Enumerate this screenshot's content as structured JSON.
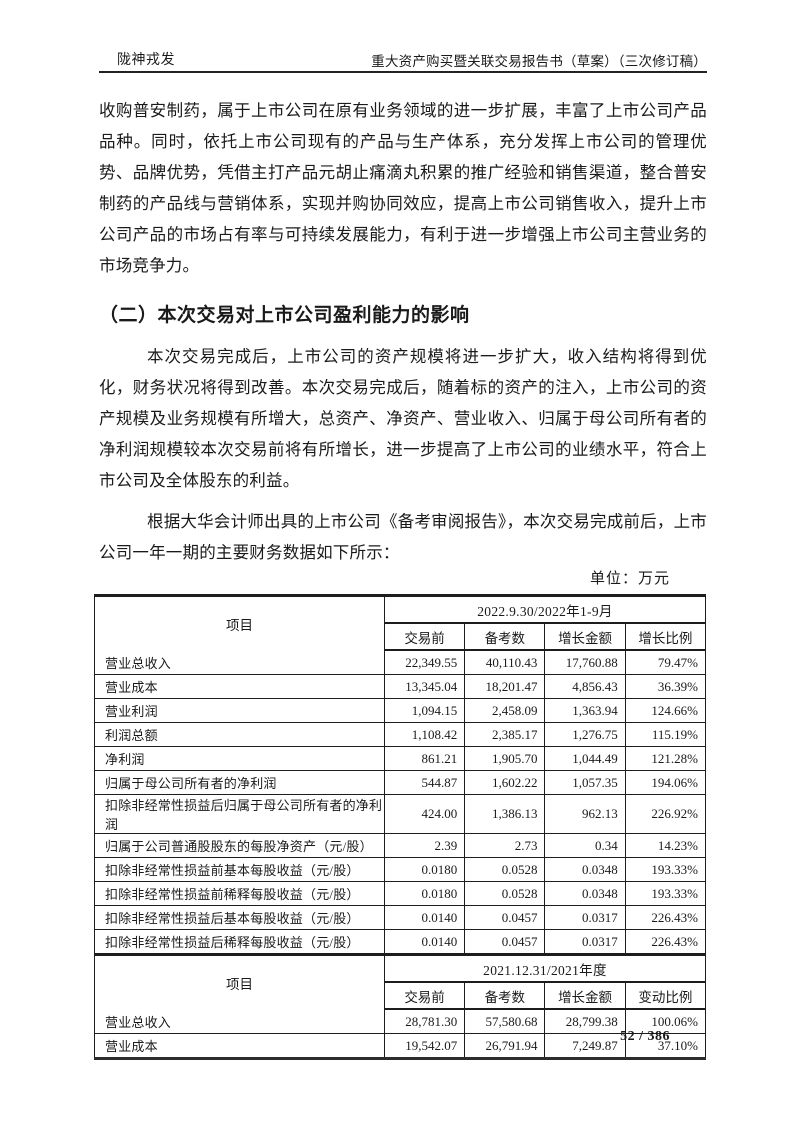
{
  "doc": {
    "header": {
      "left": "陇神戎发",
      "right": "重大资产购买暨关联交易报告书（草案）（三次修订稿）"
    },
    "body": {
      "p1": "收购普安制药，属于上市公司在原有业务领域的进一步扩展，丰富了上市公司产品品种。同时，依托上市公司现有的产品与生产体系，充分发挥上市公司的管理优势、品牌优势，凭借主打产品元胡止痛滴丸积累的推广经验和销售渠道，整合普安制药的产品线与营销体系，实现并购协同效应，提高上市公司销售收入，提升上市公司产品的市场占有率与可持续发展能力，有利于进一步增强上市公司主营业务的市场竞争力。",
      "heading": "（二）本次交易对上市公司盈利能力的影响",
      "p2": "本次交易完成后，上市公司的资产规模将进一步扩大，收入结构将得到优化，财务状况将得到改善。本次交易完成后，随着标的资产的注入，上市公司的资产规模及业务规模有所增大，总资产、净资产、营业收入、归属于母公司所有者的净利润规模较本次交易前将有所增长，进一步提高了上市公司的业绩水平，符合上市公司及全体股东的利益。",
      "p3": "根据大华会计师出具的上市公司《备考审阅报告》，本次交易完成前后，上市公司一年一期的主要财务数据如下所示：",
      "unit_label": "单位：万元"
    },
    "footer": {
      "page_number": "52 / 386"
    }
  },
  "table": {
    "sections": [
      {
        "item_header": "项目",
        "period_header": "2022.9.30/2022年1-9月",
        "col_headers": [
          "交易前",
          "备考数",
          "增长金额",
          "增长比例"
        ],
        "rows": [
          {
            "label": "营业总收入",
            "values": [
              "22,349.55",
              "40,110.43",
              "17,760.88",
              "79.47%"
            ]
          },
          {
            "label": "营业成本",
            "values": [
              "13,345.04",
              "18,201.47",
              "4,856.43",
              "36.39%"
            ]
          },
          {
            "label": "营业利润",
            "values": [
              "1,094.15",
              "2,458.09",
              "1,363.94",
              "124.66%"
            ]
          },
          {
            "label": "利润总额",
            "values": [
              "1,108.42",
              "2,385.17",
              "1,276.75",
              "115.19%"
            ]
          },
          {
            "label": "净利润",
            "values": [
              "861.21",
              "1,905.70",
              "1,044.49",
              "121.28%"
            ]
          },
          {
            "label": "归属于母公司所有者的净利润",
            "values": [
              "544.87",
              "1,602.22",
              "1,057.35",
              "194.06%"
            ]
          },
          {
            "label": "扣除非经常性损益后归属于母公司所有者的净利润",
            "values": [
              "424.00",
              "1,386.13",
              "962.13",
              "226.92%"
            ]
          },
          {
            "label": "归属于公司普通股股东的每股净资产（元/股）",
            "values": [
              "2.39",
              "2.73",
              "0.34",
              "14.23%"
            ]
          },
          {
            "label": "扣除非经常性损益前基本每股收益（元/股）",
            "values": [
              "0.0180",
              "0.0528",
              "0.0348",
              "193.33%"
            ]
          },
          {
            "label": "扣除非经常性损益前稀释每股收益（元/股）",
            "values": [
              "0.0180",
              "0.0528",
              "0.0348",
              "193.33%"
            ]
          },
          {
            "label": "扣除非经常性损益后基本每股收益（元/股）",
            "values": [
              "0.0140",
              "0.0457",
              "0.0317",
              "226.43%"
            ]
          },
          {
            "label": "扣除非经常性损益后稀释每股收益（元/股）",
            "values": [
              "0.0140",
              "0.0457",
              "0.0317",
              "226.43%"
            ]
          }
        ]
      },
      {
        "item_header": "项目",
        "period_header": "2021.12.31/2021年度",
        "col_headers": [
          "交易前",
          "备考数",
          "增长金额",
          "变动比例"
        ],
        "rows": [
          {
            "label": "营业总收入",
            "values": [
              "28,781.30",
              "57,580.68",
              "28,799.38",
              "100.06%"
            ]
          },
          {
            "label": "营业成本",
            "values": [
              "19,542.07",
              "26,791.94",
              "7,249.87",
              "37.10%"
            ]
          }
        ]
      }
    ]
  }
}
